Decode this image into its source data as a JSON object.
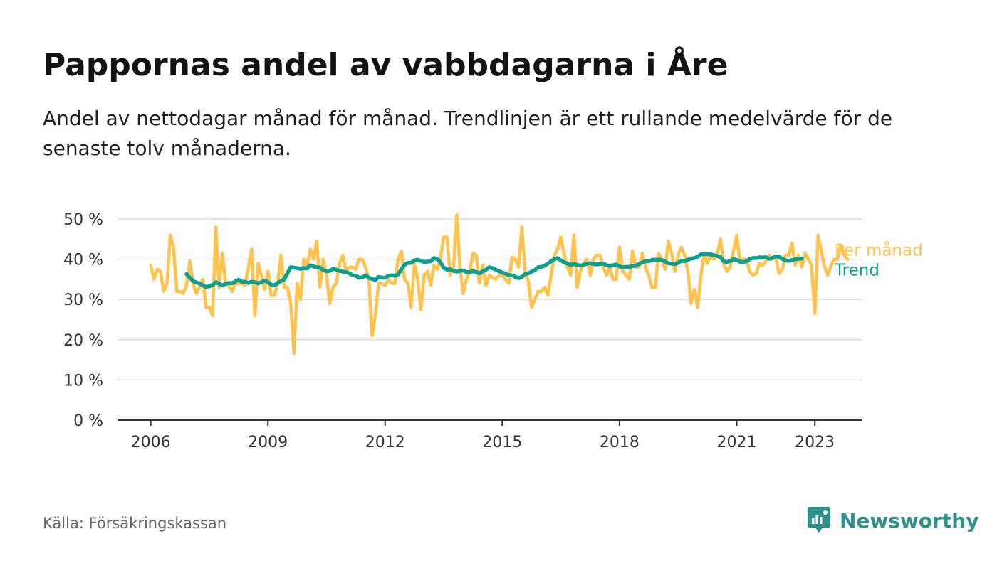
{
  "title": "Pappornas andel av vabbdagarna i Åre",
  "subtitle": "Andel av nettodagar månad för månad. Trendlinjen är ett rullande medelvärde för de senaste tolv månaderna.",
  "source": "Källa: Försäkringskassan",
  "brand": "Newsworthy",
  "colors": {
    "monthly": "#FFC24D",
    "trend": "#0E9E8E",
    "grid": "#dddddd",
    "axis": "#333333",
    "brand": "#2f8f8a"
  },
  "chart_data": {
    "type": "line",
    "title": "Pappornas andel av vabbdagarna i Åre",
    "xlabel": "",
    "ylabel": "",
    "x_start": "2006-01",
    "x_range": [
      2005.15,
      2024.2
    ],
    "ylim": [
      0,
      50
    ],
    "y_ticks": [
      0,
      10,
      20,
      30,
      40,
      50
    ],
    "y_tick_labels": [
      "0 %",
      "10 %",
      "20 %",
      "30 %",
      "40 %",
      "50 %"
    ],
    "x_ticks": [
      2006,
      2009,
      2012,
      2015,
      2018,
      2021,
      2023
    ],
    "x_tick_labels": [
      "2006",
      "2009",
      "2012",
      "2015",
      "2018",
      "2021",
      "2023"
    ],
    "grid": true,
    "legend": "right-of-line-ends",
    "series": [
      {
        "name": "Per månad",
        "values": [
          38.5,
          35,
          37.5,
          37,
          32,
          34,
          46,
          43,
          32,
          32,
          31.5,
          33.5,
          39.5,
          34,
          31.5,
          33,
          35,
          28,
          28,
          26,
          48,
          33,
          41.5,
          34,
          33.5,
          32,
          34,
          34,
          34,
          33.5,
          38,
          42.5,
          26,
          39,
          36,
          32.5,
          37,
          31,
          31,
          34,
          41,
          33,
          33,
          29,
          16.5,
          34,
          30,
          40,
          38,
          42.5,
          40,
          44.5,
          33,
          40,
          36,
          29,
          33,
          34,
          39,
          41,
          37,
          38,
          38,
          37.5,
          40,
          40,
          38,
          35,
          21,
          26,
          34,
          34,
          33.5,
          35,
          34,
          34,
          40,
          42,
          35,
          34,
          28,
          39,
          35,
          27.5,
          36,
          37,
          33.5,
          38.5,
          37.5,
          40,
          45.5,
          45.5,
          36,
          38,
          51,
          38,
          31.5,
          35,
          37,
          41.5,
          41,
          34,
          38.5,
          33.5,
          36,
          35.5,
          35,
          36,
          36,
          35,
          34,
          40.5,
          40,
          38,
          48,
          37,
          34.5,
          28,
          30,
          32,
          32,
          33,
          31,
          36,
          41,
          42.5,
          45.5,
          41,
          38,
          36,
          46,
          33,
          37,
          39,
          40,
          36,
          40,
          41,
          41,
          38,
          36,
          38,
          35,
          35,
          43,
          37,
          36,
          35,
          42,
          38,
          38,
          41.5,
          38,
          36,
          33,
          33,
          41.5,
          40,
          37.5,
          44.5,
          41.5,
          37,
          41,
          43,
          41,
          37,
          29,
          32.5,
          28,
          36,
          41,
          39,
          41,
          40,
          41,
          45,
          39,
          37,
          38,
          42,
          46,
          39,
          40,
          40,
          37,
          36,
          36.5,
          39,
          38.5,
          39.5,
          41,
          40,
          40.5,
          36.5,
          37.5,
          41,
          41,
          44,
          38.5,
          41,
          38,
          41.5,
          40,
          38.5,
          26.5,
          46,
          42,
          38,
          36,
          38.5,
          40,
          40,
          43.5,
          41,
          40
        ]
      },
      {
        "name": "Trend",
        "start_index": 11,
        "values": [
          36.3,
          35.4,
          34.6,
          34.2,
          34.0,
          33.5,
          33.1,
          33.3,
          33.6,
          34.3,
          33.9,
          33.5,
          33.9,
          34.1,
          34.0,
          34.5,
          34.9,
          34.4,
          34.4,
          34.1,
          34.4,
          34.3,
          34.0,
          34.3,
          34.7,
          34.3,
          33.7,
          33.5,
          34.1,
          34.6,
          35.0,
          36.5,
          38.0,
          37.9,
          37.8,
          37.6,
          37.8,
          37.7,
          38.5,
          38.2,
          38.0,
          37.9,
          37.3,
          37.0,
          37.1,
          37.6,
          37.4,
          37.1,
          36.9,
          36.8,
          36.5,
          36.0,
          35.9,
          35.4,
          35.5,
          36.0,
          35.4,
          35.1,
          34.8,
          35.6,
          35.4,
          35.4,
          35.9,
          36.0,
          35.9,
          36.2,
          37.5,
          38.6,
          39.1,
          39.1,
          39.7,
          39.9,
          39.6,
          39.3,
          39.4,
          39.5,
          40.3,
          40.0,
          39.3,
          37.9,
          37.4,
          37.5,
          37.1,
          36.9,
          37.1,
          37.2,
          36.8,
          36.8,
          37.0,
          36.8,
          36.5,
          37.0,
          37.4,
          38.0,
          37.8,
          37.4,
          37.0,
          36.7,
          36.4,
          36.0,
          36.0,
          35.6,
          35.3,
          35.6,
          36.3,
          36.5,
          36.9,
          37.3,
          38.0,
          38.1,
          38.4,
          38.9,
          39.5,
          40.0,
          40.3,
          39.7,
          39.2,
          38.9,
          38.6,
          38.8,
          38.6,
          38.4,
          38.6,
          38.9,
          39.0,
          38.8,
          38.7,
          38.8,
          38.9,
          38.5,
          38.3,
          38.5,
          38.7,
          38.2,
          38.0,
          38.1,
          38.1,
          38.3,
          38.4,
          38.8,
          39.2,
          39.5,
          39.5,
          39.8,
          39.9,
          39.9,
          39.8,
          39.4,
          39.0,
          38.9,
          38.8,
          39.1,
          39.6,
          39.5,
          39.9,
          40.2,
          40.3,
          40.6,
          41.2,
          41.3,
          41.2,
          41.2,
          41.0,
          40.8,
          40.5,
          39.5,
          39.3,
          39.6,
          40.0,
          39.8,
          39.4,
          39.2,
          39.5,
          40.0,
          40.3,
          40.3,
          40.5,
          40.4,
          40.5,
          40.1,
          40.3,
          40.7,
          40.6,
          40.1,
          39.7,
          39.6,
          39.8,
          40.0,
          40.1,
          40.2
        ]
      }
    ]
  }
}
